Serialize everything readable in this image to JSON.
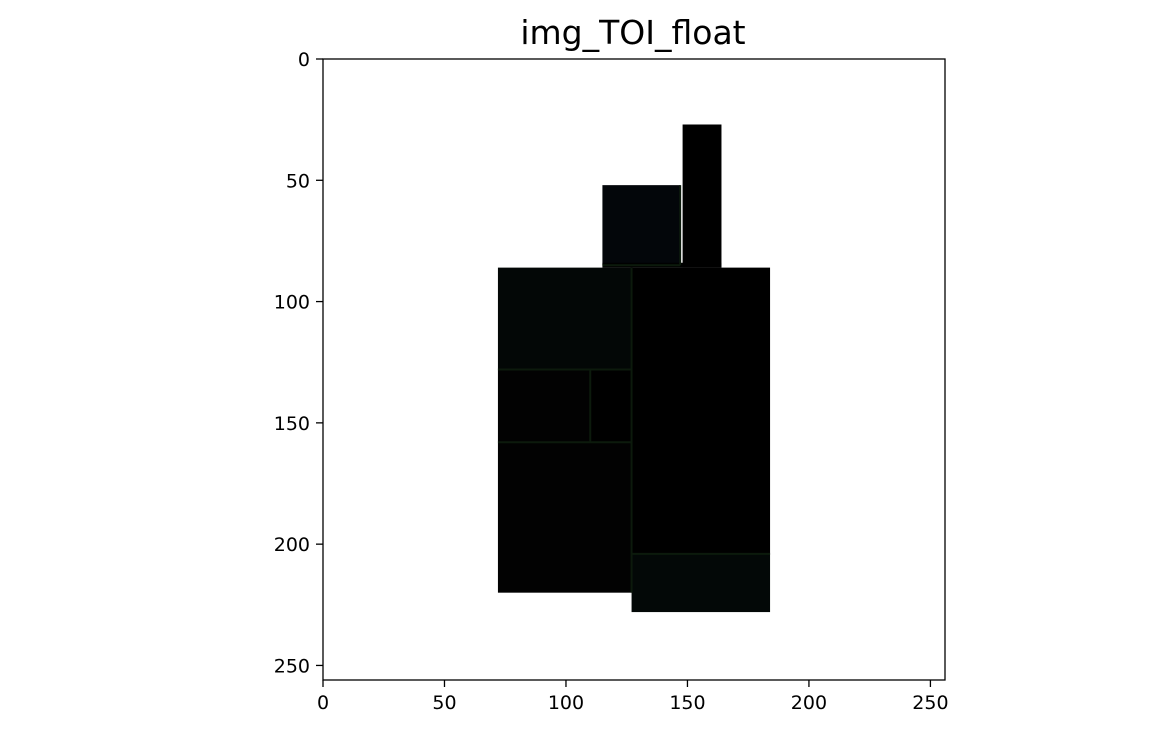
{
  "chart_data": {
    "type": "image",
    "title": "img_TOI_float",
    "xlim": [
      0,
      256
    ],
    "ylim": [
      256,
      0
    ],
    "y_inverted": true,
    "x_ticks": [
      0,
      50,
      100,
      150,
      200,
      250
    ],
    "y_ticks": [
      0,
      50,
      100,
      150,
      200,
      250
    ],
    "background_color": "#ffffff",
    "regions": [
      {
        "x0": 72,
        "x1": 127,
        "y0": 86,
        "y1": 128,
        "color": "#030706"
      },
      {
        "x0": 72,
        "x1": 110,
        "y0": 128,
        "y1": 158,
        "color": "#020202"
      },
      {
        "x0": 72,
        "x1": 127,
        "y0": 158,
        "y1": 220,
        "color": "#020202"
      },
      {
        "x0": 110,
        "x1": 127,
        "y0": 128,
        "y1": 158,
        "color": "#000000"
      },
      {
        "x0": 115,
        "x1": 147,
        "y0": 52,
        "y1": 85,
        "color": "#03060a"
      },
      {
        "x0": 148,
        "x1": 164,
        "y0": 27,
        "y1": 86,
        "color": "#000000"
      },
      {
        "x0": 115,
        "x1": 164,
        "y0": 84,
        "y1": 86,
        "color": "#000000"
      },
      {
        "x0": 127,
        "x1": 184,
        "y0": 86,
        "y1": 204,
        "color": "#000000"
      },
      {
        "x0": 127,
        "x1": 184,
        "y0": 204,
        "y1": 228,
        "color": "#030807"
      }
    ],
    "seam_color": "#0c1a0c"
  }
}
